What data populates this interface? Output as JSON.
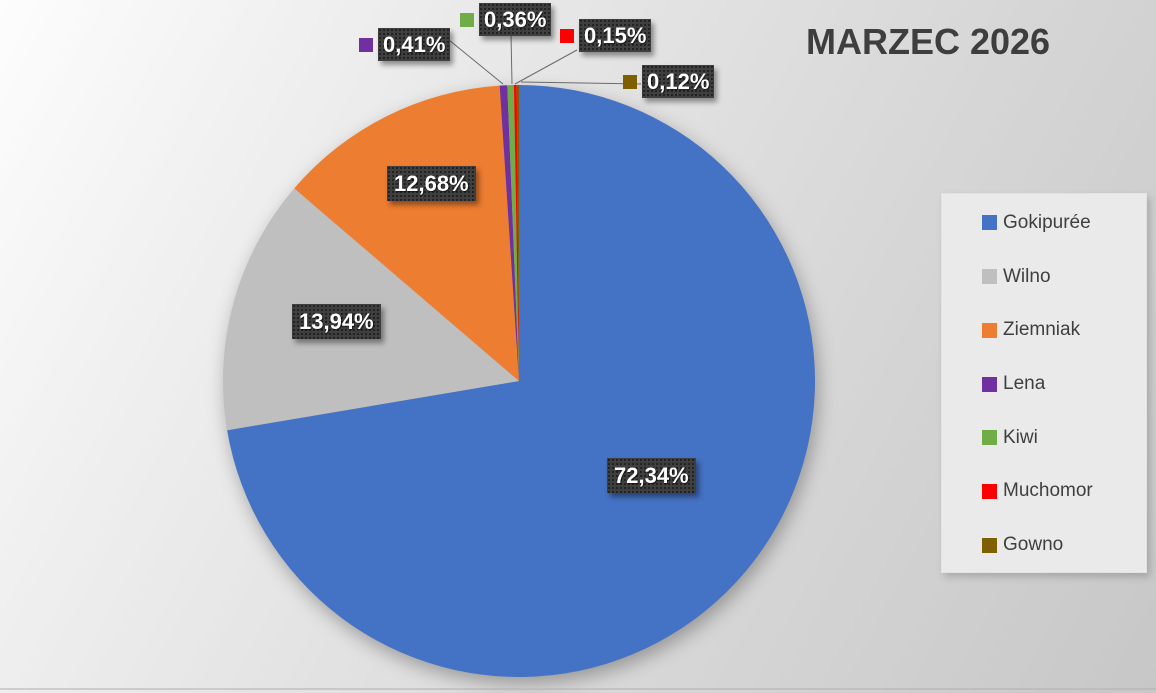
{
  "title": {
    "text": "MARZEC 2026"
  },
  "chart_data": {
    "type": "pie",
    "title": "MARZEC 2026",
    "unit": "%",
    "decimal_separator": ",",
    "start_angle_deg": 0,
    "direction": "clockwise",
    "legend_position": "right",
    "grid": false,
    "series": [
      {
        "name": "Gokipurée",
        "value": 72.34,
        "label": "72,34%",
        "color": "#4472C4"
      },
      {
        "name": "Wilno",
        "value": 13.94,
        "label": "13,94%",
        "color": "#BFBFBF"
      },
      {
        "name": "Ziemniak",
        "value": 12.68,
        "label": "12,68%",
        "color": "#ED7D31"
      },
      {
        "name": "Lena",
        "value": 0.41,
        "label": "0,41%",
        "color": "#7030A0"
      },
      {
        "name": "Kiwi",
        "value": 0.36,
        "label": "0,36%",
        "color": "#70AD47"
      },
      {
        "name": "Muchomor",
        "value": 0.15,
        "label": "0,15%",
        "color": "#FF0000"
      },
      {
        "name": "Gowno",
        "value": 0.12,
        "label": "0,12%",
        "color": "#7F6000"
      }
    ]
  },
  "colors": {
    "background_light": "#fdfdfd",
    "background_dark": "#c7c7c7",
    "label_box": "#3f3f3f",
    "label_text": "#ffffff",
    "title_text": "#3e3e3e",
    "legend_panel": "#eaeaea",
    "leader_line": "#6b6b6b"
  }
}
